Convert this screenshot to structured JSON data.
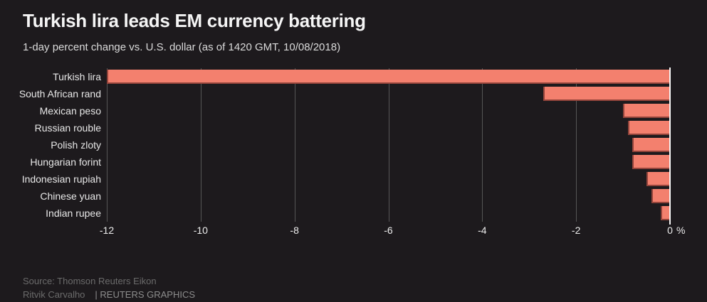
{
  "title": "Turkish lira leads EM currency battering",
  "subtitle": "1-day percent change vs. U.S. dollar (as of 1420 GMT, 10/08/2018)",
  "footer": {
    "source": "Source: Thomson Reuters Eikon",
    "credit": "Ritvik Carvalho",
    "brand": "| REUTERS GRAPHICS"
  },
  "colors": {
    "background": "#1d1a1d",
    "bar": "#f3806e",
    "bar_edge": "#94453c",
    "grid": "#565656",
    "zero_line": "#f5f5f5",
    "title": "#f5f5f5",
    "subtitle": "#dadada",
    "category_label": "#e8e8e8",
    "tick_label": "#ededed",
    "footer_text": "#6b6b6b",
    "brand_text": "#8d8d8d"
  },
  "chart_data": {
    "type": "bar",
    "orientation": "horizontal",
    "title": "Turkish lira leads EM currency battering",
    "subtitle": "1-day percent change vs. U.S. dollar (as of 1420 GMT, 10/08/2018)",
    "categories": [
      "Turkish lira",
      "South African rand",
      "Mexican peso",
      "Russian rouble",
      "Polish zloty",
      "Hungarian forint",
      "Indonesian rupiah",
      "Chinese yuan",
      "Indian rupee"
    ],
    "values": [
      -12.0,
      -2.7,
      -1.0,
      -0.9,
      -0.8,
      -0.8,
      -0.5,
      -0.4,
      -0.2
    ],
    "xlabel": "%",
    "ylabel": "",
    "xlim": [
      -12,
      0
    ],
    "xticks": [
      -12,
      -10,
      -8,
      -6,
      -4,
      -2,
      0
    ],
    "unit_label": "%",
    "grid": true,
    "legend": false,
    "note": "Turkish lira bar spans the full axis (clipped at -12)"
  }
}
